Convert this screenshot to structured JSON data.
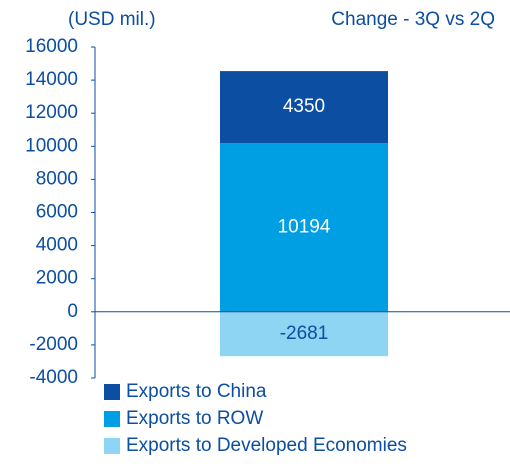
{
  "chart_data": {
    "type": "stacked_bar",
    "title": "Change - 3Q vs 2Q",
    "y_label": "(USD mil.)",
    "categories": [
      null
    ],
    "series": [
      {
        "name": "Exports to China",
        "color": "#0b4ea2",
        "values": [
          4350
        ]
      },
      {
        "name": "Exports to ROW",
        "color": "#009fe3",
        "values": [
          10194
        ]
      },
      {
        "name": "Exports to Developed Economies",
        "color": "#8ed4f3",
        "values": [
          -2681
        ]
      }
    ],
    "ylim": [
      -4000,
      16000
    ],
    "yticks": [
      -4000,
      -2000,
      0,
      2000,
      4000,
      6000,
      8000,
      10000,
      12000,
      14000,
      16000
    ],
    "grid": false
  }
}
